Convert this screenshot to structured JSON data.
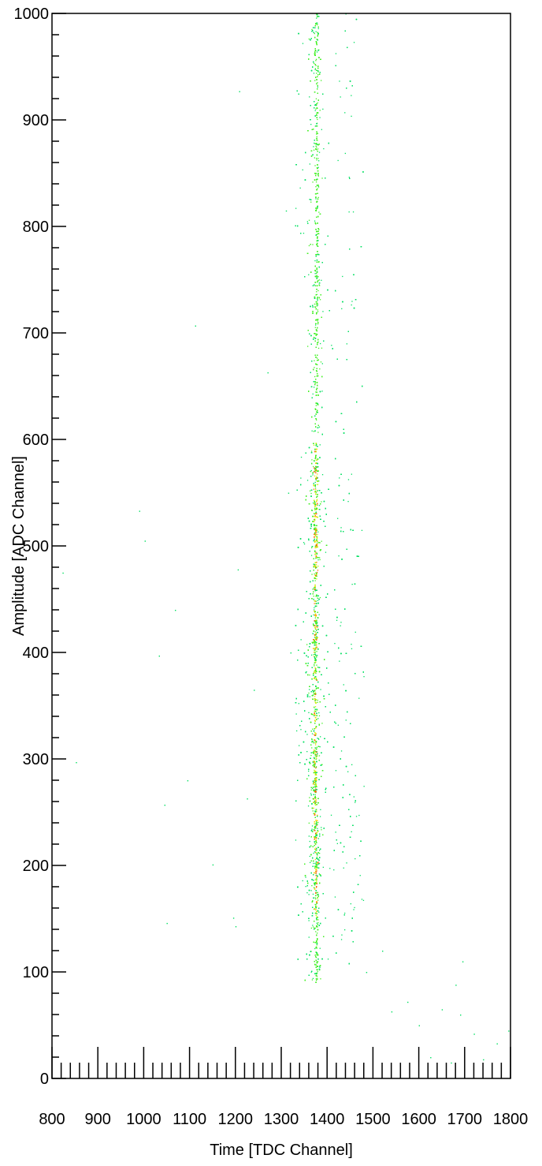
{
  "chart_data": {
    "type": "heatmap",
    "title": "",
    "xlabel": "Time [TDC Channel]",
    "ylabel": "Amplitude [ADC Channel]",
    "xlim": [
      800,
      1800
    ],
    "ylim": [
      0,
      1000
    ],
    "x_ticks": [
      800,
      900,
      1000,
      1100,
      1200,
      1300,
      1400,
      1500,
      1600,
      1700,
      1800
    ],
    "y_ticks": [
      0,
      100,
      200,
      300,
      400,
      500,
      600,
      700,
      800,
      900,
      1000
    ],
    "grid": false,
    "legend": "none",
    "color_scale": [
      "#00e060",
      "#40f020",
      "#c8f000",
      "#ffd000",
      "#ff6000"
    ],
    "band": {
      "center_x_at_y": [
        [
          100,
          1376
        ],
        [
          200,
          1375
        ],
        [
          300,
          1373
        ],
        [
          400,
          1373
        ],
        [
          500,
          1374
        ],
        [
          600,
          1375
        ],
        [
          700,
          1376
        ],
        [
          800,
          1377
        ],
        [
          900,
          1376
        ],
        [
          1000,
          1376
        ]
      ],
      "core_x_range": [
        1360,
        1385
      ],
      "scatter_x_range": [
        1310,
        1480
      ],
      "y_range": [
        90,
        1000
      ],
      "peak_density_y_range": [
        150,
        600
      ]
    },
    "stray_points": [
      [
        823,
        475
      ],
      [
        852,
        297
      ],
      [
        990,
        533
      ],
      [
        1002,
        505
      ],
      [
        1033,
        397
      ],
      [
        1045,
        257
      ],
      [
        1050,
        146
      ],
      [
        1068,
        440
      ],
      [
        1095,
        280
      ],
      [
        1112,
        707
      ],
      [
        1150,
        201
      ],
      [
        1195,
        151
      ],
      [
        1200,
        143
      ],
      [
        1205,
        478
      ],
      [
        1208,
        927
      ],
      [
        1225,
        263
      ],
      [
        1240,
        365
      ],
      [
        1270,
        663
      ],
      [
        1310,
        815
      ],
      [
        1315,
        550
      ],
      [
        1320,
        400
      ],
      [
        1440,
        1000
      ],
      [
        1485,
        100
      ],
      [
        1520,
        120
      ],
      [
        1540,
        63
      ],
      [
        1575,
        72
      ],
      [
        1600,
        50
      ],
      [
        1625,
        20
      ],
      [
        1650,
        65
      ],
      [
        1670,
        15
      ],
      [
        1680,
        88
      ],
      [
        1690,
        60
      ],
      [
        1695,
        110
      ],
      [
        1720,
        42
      ],
      [
        1740,
        18
      ],
      [
        1770,
        33
      ],
      [
        1795,
        45
      ]
    ]
  }
}
